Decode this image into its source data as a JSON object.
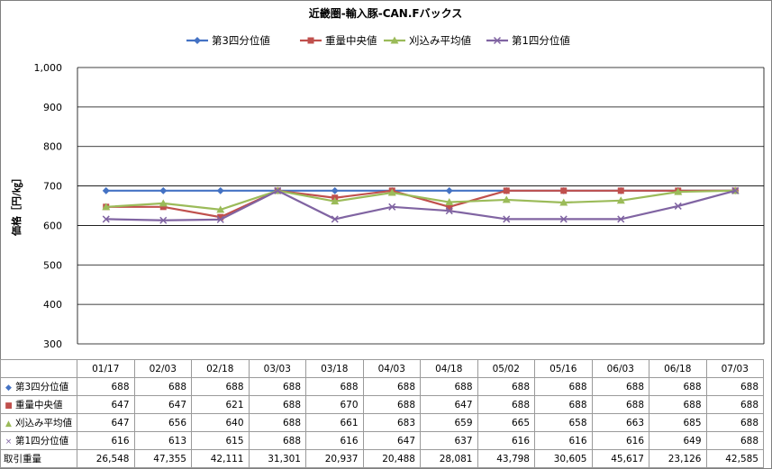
{
  "chart_data": {
    "type": "line",
    "title": "近畿圏-輸入豚-CAN.Fバックス",
    "ylabel": "価格［円/㎏］",
    "ylim": [
      300,
      1000
    ],
    "yticks": [
      "300",
      "400",
      "500",
      "600",
      "700",
      "800",
      "900",
      "1,000"
    ],
    "grid": true,
    "legend_position": "top",
    "categories": [
      "01/17",
      "02/03",
      "02/18",
      "03/03",
      "03/18",
      "04/03",
      "04/18",
      "05/02",
      "05/16",
      "06/03",
      "06/18",
      "07/03"
    ],
    "series": [
      {
        "name": "第3四分位値",
        "color": "#4472c4",
        "marker": "diamond",
        "values": [
          688,
          688,
          688,
          688,
          688,
          688,
          688,
          688,
          688,
          688,
          688,
          688
        ]
      },
      {
        "name": "重量中央値",
        "color": "#c0504d",
        "marker": "square",
        "values": [
          647,
          647,
          621,
          688,
          670,
          688,
          647,
          688,
          688,
          688,
          688,
          688
        ]
      },
      {
        "name": "刈込み平均値",
        "color": "#9bbb59",
        "marker": "triangle",
        "values": [
          647,
          656,
          640,
          688,
          661,
          683,
          659,
          665,
          658,
          663,
          685,
          688
        ]
      },
      {
        "name": "第1四分位値",
        "color": "#8064a2",
        "marker": "x",
        "values": [
          616,
          613,
          615,
          688,
          616,
          647,
          637,
          616,
          616,
          616,
          649,
          688
        ]
      }
    ],
    "table_extra_row": {
      "name": "取引重量",
      "values": [
        "26,548",
        "47,355",
        "42,111",
        "31,301",
        "20,937",
        "20,488",
        "28,081",
        "43,798",
        "30,605",
        "45,617",
        "23,126",
        "42,585"
      ]
    }
  }
}
